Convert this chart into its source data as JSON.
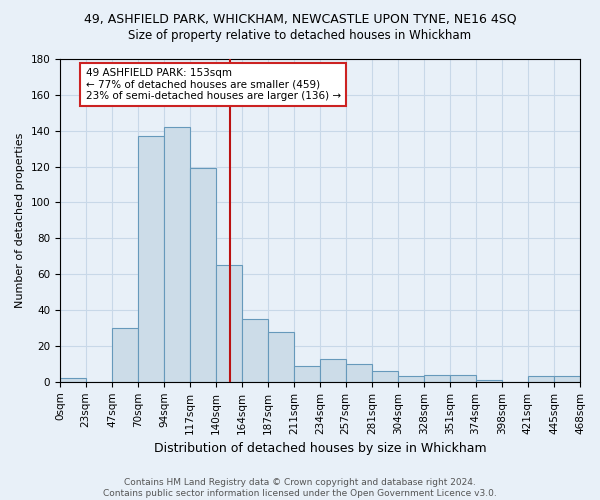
{
  "title": "49, ASHFIELD PARK, WHICKHAM, NEWCASTLE UPON TYNE, NE16 4SQ",
  "subtitle": "Size of property relative to detached houses in Whickham",
  "xlabel": "Distribution of detached houses by size in Whickham",
  "ylabel": "Number of detached properties",
  "bin_edges": [
    0,
    23,
    47,
    70,
    94,
    117,
    140,
    164,
    187,
    211,
    234,
    257,
    281,
    304,
    328,
    351,
    374,
    398,
    421,
    445,
    468
  ],
  "bin_labels": [
    "0sqm",
    "23sqm",
    "47sqm",
    "70sqm",
    "94sqm",
    "117sqm",
    "140sqm",
    "164sqm",
    "187sqm",
    "211sqm",
    "234sqm",
    "257sqm",
    "281sqm",
    "304sqm",
    "328sqm",
    "351sqm",
    "374sqm",
    "398sqm",
    "421sqm",
    "445sqm",
    "468sqm"
  ],
  "counts": [
    2,
    0,
    30,
    137,
    142,
    119,
    65,
    35,
    28,
    9,
    13,
    10,
    6,
    3,
    4,
    4,
    1,
    0,
    3,
    3
  ],
  "bar_color": "#ccdce8",
  "bar_edge_color": "#6699bb",
  "property_value": 153,
  "vline_color": "#bb1111",
  "ylim": [
    0,
    180
  ],
  "yticks": [
    0,
    20,
    40,
    60,
    80,
    100,
    120,
    140,
    160,
    180
  ],
  "annotation_text": "49 ASHFIELD PARK: 153sqm\n← 77% of detached houses are smaller (459)\n23% of semi-detached houses are larger (136) →",
  "annotation_box_color": "#ffffff",
  "annotation_box_edge": "#cc2222",
  "footer": "Contains HM Land Registry data © Crown copyright and database right 2024.\nContains public sector information licensed under the Open Government Licence v3.0.",
  "grid_color": "#c8d8e8",
  "bg_color": "#e8f0f8",
  "title_fontsize": 9,
  "subtitle_fontsize": 8.5,
  "ylabel_fontsize": 8,
  "xlabel_fontsize": 9,
  "tick_fontsize": 7.5,
  "footer_fontsize": 6.5,
  "annotation_fontsize": 7.5
}
